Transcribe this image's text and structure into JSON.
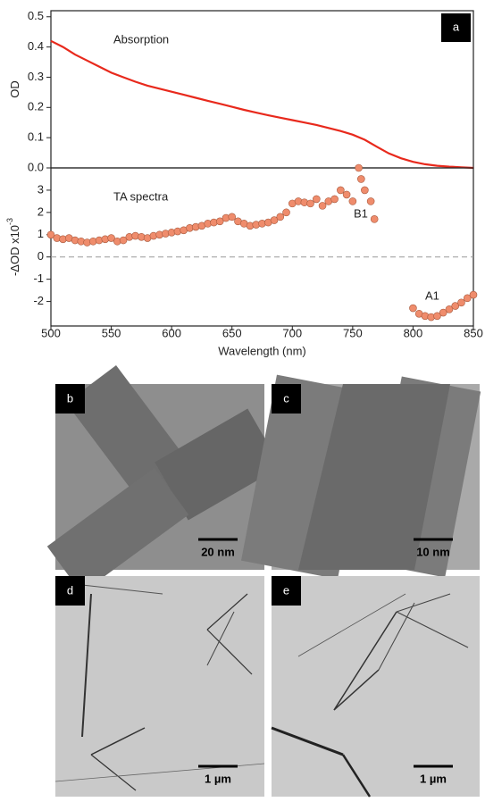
{
  "chart_data": [
    {
      "type": "line",
      "panel_label": "a",
      "annotation": "Absorption",
      "y_label": "OD",
      "color": "#e8291c",
      "x": [
        500,
        510,
        520,
        530,
        540,
        550,
        560,
        570,
        580,
        590,
        600,
        610,
        620,
        630,
        640,
        650,
        660,
        670,
        680,
        690,
        700,
        710,
        720,
        730,
        740,
        750,
        760,
        770,
        780,
        790,
        800,
        810,
        820,
        830,
        840,
        850
      ],
      "values": [
        0.42,
        0.4,
        0.375,
        0.355,
        0.335,
        0.315,
        0.3,
        0.285,
        0.272,
        0.262,
        0.252,
        0.242,
        0.232,
        0.222,
        0.212,
        0.202,
        0.192,
        0.183,
        0.174,
        0.166,
        0.158,
        0.15,
        0.142,
        0.132,
        0.122,
        0.11,
        0.093,
        0.07,
        0.048,
        0.032,
        0.02,
        0.012,
        0.007,
        0.004,
        0.002,
        0
      ],
      "xlim": [
        500,
        850
      ],
      "ylim": [
        0,
        0.52
      ],
      "yticks": [
        {
          "value": 0,
          "label": "0.0"
        },
        0.1,
        0.2,
        0.3,
        0.4,
        0.5
      ]
    },
    {
      "type": "scatter",
      "annotation": "TA spectra",
      "peak_labels": [
        "B1",
        "A1"
      ],
      "y_label": "-ΔOD x10",
      "y_label_exponent": "-3",
      "x_label": "Wavelength (nm)",
      "color": "#ef8c6c",
      "reference_line": 0,
      "x": [
        500,
        505,
        510,
        515,
        520,
        525,
        530,
        535,
        540,
        545,
        550,
        555,
        560,
        565,
        570,
        575,
        580,
        585,
        590,
        595,
        600,
        605,
        610,
        615,
        620,
        625,
        630,
        635,
        640,
        645,
        650,
        655,
        660,
        665,
        670,
        675,
        680,
        685,
        690,
        695,
        700,
        705,
        710,
        715,
        720,
        725,
        730,
        735,
        740,
        745,
        750,
        755,
        757,
        760,
        765,
        768,
        800,
        805,
        810,
        815,
        820,
        825,
        830,
        835,
        840,
        845,
        850
      ],
      "values": [
        1.0,
        0.85,
        0.8,
        0.85,
        0.75,
        0.7,
        0.65,
        0.7,
        0.75,
        0.8,
        0.85,
        0.7,
        0.75,
        0.9,
        0.95,
        0.9,
        0.85,
        0.95,
        1.0,
        1.05,
        1.1,
        1.15,
        1.2,
        1.3,
        1.35,
        1.4,
        1.5,
        1.55,
        1.6,
        1.75,
        1.8,
        1.6,
        1.5,
        1.4,
        1.45,
        1.5,
        1.55,
        1.65,
        1.8,
        2.0,
        2.4,
        2.5,
        2.45,
        2.4,
        2.6,
        2.3,
        2.5,
        2.6,
        3.0,
        2.8,
        2.5,
        4.0,
        3.5,
        3.0,
        2.5,
        1.7,
        -2.3,
        -2.55,
        -2.65,
        -2.7,
        -2.65,
        -2.5,
        -2.35,
        -2.2,
        -2.05,
        -1.85,
        -1.7
      ],
      "xlim": [
        500,
        850
      ],
      "ylim": [
        -3.1,
        4
      ],
      "xticks": [
        500,
        550,
        600,
        650,
        700,
        750,
        800,
        850
      ],
      "yticks": [
        -2,
        -1,
        0,
        1,
        2,
        3
      ]
    }
  ],
  "panels": [
    {
      "label": "b",
      "scale_bar": "20 nm"
    },
    {
      "label": "c",
      "scale_bar": "10 nm"
    },
    {
      "label": "d",
      "scale_bar": "1 µm"
    },
    {
      "label": "e",
      "scale_bar": "1 µm"
    }
  ]
}
